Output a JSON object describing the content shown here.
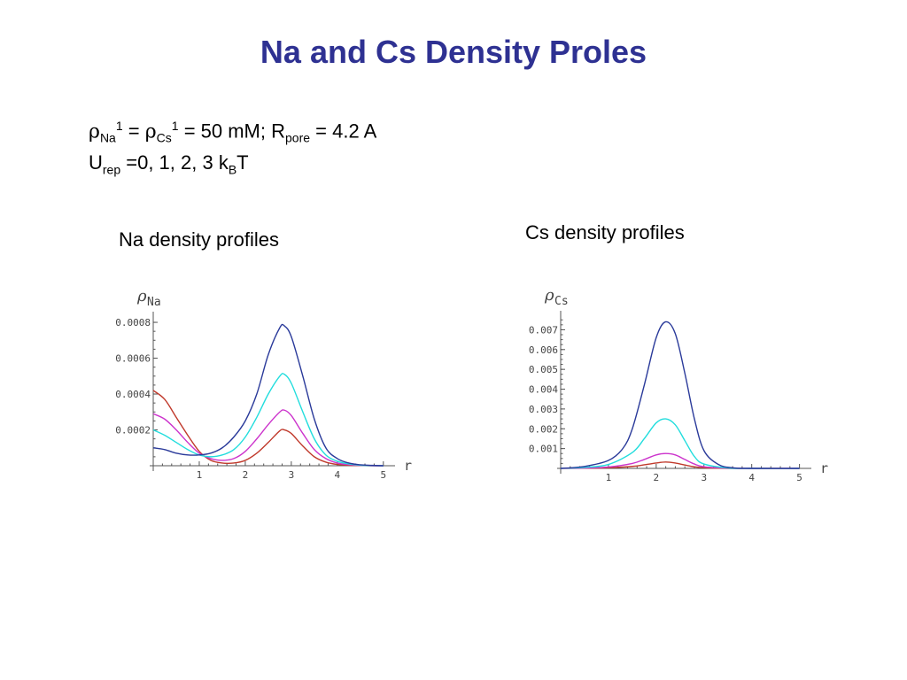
{
  "slide": {
    "title": "Na and Cs Density Proles"
  },
  "params": {
    "line1": {
      "rho": "ρ",
      "na_sub": "Na",
      "na_sup": "1",
      "eq1": " = ",
      "cs_sub": "Cs",
      "cs_sup": "1",
      "eq2": " = 50 mM; R",
      "pore_sub": "pore",
      "eq3": " = 4.2 A"
    },
    "line2": {
      "u": "U",
      "rep_sub": "rep",
      "values": " =0, 1, 2, 3 k",
      "b_sub": "B",
      "t": "T"
    }
  },
  "captions": {
    "na": "Na density profiles",
    "cs": "Cs density profiles"
  },
  "colors": {
    "red": "#c0392b",
    "magenta": "#cc33cc",
    "cyan": "#22dddd",
    "blue": "#2a3a9a"
  },
  "chart_data": [
    {
      "type": "line",
      "ylabel_symbol": "ρ",
      "ylabel_sub": "Na",
      "xlabel": "r",
      "xlim": [
        0,
        5.1
      ],
      "ylim": [
        0,
        0.00082
      ],
      "xticks": [
        1,
        2,
        3,
        4,
        5
      ],
      "xtick_labels": [
        "1",
        "2",
        "3",
        "4",
        "5"
      ],
      "yticks": [
        0.0002,
        0.0004,
        0.0006,
        0.0008
      ],
      "ytick_labels": [
        "0.0002",
        "0.0004",
        "0.0006",
        "0.0008"
      ],
      "series": [
        {
          "color_key": "red",
          "x": [
            0,
            0.25,
            0.5,
            0.75,
            1.0,
            1.25,
            1.5,
            1.75,
            2.0,
            2.25,
            2.5,
            2.75,
            2.85,
            3.0,
            3.25,
            3.5,
            3.75,
            4.0,
            4.25,
            4.5,
            4.75,
            5.0
          ],
          "y": [
            0.00042,
            0.00037,
            0.00027,
            0.00017,
            8e-05,
            3e-05,
            1.5e-05,
            1.5e-05,
            3e-05,
            7e-05,
            0.00013,
            0.000195,
            0.0002,
            0.00018,
            0.00011,
            5e-05,
            2e-05,
            7e-06,
            3e-06,
            1e-06,
            0,
            0
          ]
        },
        {
          "color_key": "magenta",
          "x": [
            0,
            0.25,
            0.5,
            0.75,
            1.0,
            1.25,
            1.5,
            1.75,
            2.0,
            2.25,
            2.5,
            2.75,
            2.85,
            3.0,
            3.25,
            3.5,
            3.75,
            4.0,
            4.25,
            4.5,
            4.75,
            5.0
          ],
          "y": [
            0.00029,
            0.00026,
            0.0002,
            0.00013,
            7e-05,
            4e-05,
            3e-05,
            4e-05,
            8e-05,
            0.00015,
            0.00023,
            0.0003,
            0.00031,
            0.00028,
            0.00018,
            9e-05,
            4e-05,
            1.5e-05,
            6e-06,
            2e-06,
            0,
            0
          ]
        },
        {
          "color_key": "cyan",
          "x": [
            0,
            0.25,
            0.5,
            0.75,
            1.0,
            1.25,
            1.5,
            1.75,
            2.0,
            2.25,
            2.5,
            2.75,
            2.85,
            3.0,
            3.25,
            3.5,
            3.75,
            4.0,
            4.25,
            4.5,
            4.75,
            5.0
          ],
          "y": [
            0.0002,
            0.00017,
            0.00013,
            9e-05,
            6e-05,
            5e-05,
            6e-05,
            9e-05,
            0.00016,
            0.00027,
            0.0004,
            0.0005,
            0.00051,
            0.00046,
            0.0003,
            0.00015,
            6e-05,
            2.5e-05,
            1e-05,
            3e-06,
            1e-06,
            0
          ]
        },
        {
          "color_key": "blue",
          "x": [
            0,
            0.25,
            0.5,
            0.75,
            1.0,
            1.25,
            1.5,
            1.75,
            2.0,
            2.25,
            2.5,
            2.75,
            2.85,
            3.0,
            3.25,
            3.5,
            3.75,
            4.0,
            4.25,
            4.5,
            4.75,
            5.0
          ],
          "y": [
            0.0001,
            9e-05,
            7e-05,
            6e-05,
            6e-05,
            7e-05,
            0.0001,
            0.00016,
            0.00025,
            0.0004,
            0.00062,
            0.00077,
            0.00078,
            0.00072,
            0.0005,
            0.00026,
            0.0001,
            4e-05,
            1.5e-05,
            5e-06,
            2e-06,
            0
          ]
        }
      ]
    },
    {
      "type": "line",
      "ylabel_symbol": "ρ",
      "ylabel_sub": "Cs",
      "xlabel": "r",
      "xlim": [
        0,
        5.1
      ],
      "ylim": [
        0,
        0.0076
      ],
      "xticks": [
        1,
        2,
        3,
        4,
        5
      ],
      "xtick_labels": [
        "1",
        "2",
        "3",
        "4",
        "5"
      ],
      "yticks": [
        0.001,
        0.002,
        0.003,
        0.004,
        0.005,
        0.006,
        0.007
      ],
      "ytick_labels": [
        "0.001",
        "0.002",
        "0.003",
        "0.004",
        "0.005",
        "0.006",
        "0.007"
      ],
      "series": [
        {
          "color_key": "red",
          "x": [
            0,
            0.5,
            1.0,
            1.5,
            1.75,
            2.0,
            2.2,
            2.4,
            2.6,
            2.8,
            3.0,
            3.5,
            4.0,
            5.0
          ],
          "y": [
            0,
            1e-05,
            3e-05,
            0.0001,
            0.00018,
            0.00027,
            0.00032,
            0.00027,
            0.00017,
            8e-05,
            3e-05,
            0,
            0,
            0
          ]
        },
        {
          "color_key": "magenta",
          "x": [
            0,
            0.5,
            1.0,
            1.5,
            1.75,
            2.0,
            2.2,
            2.4,
            2.6,
            2.8,
            3.0,
            3.5,
            4.0,
            5.0
          ],
          "y": [
            0,
            2e-05,
            7e-05,
            0.00025,
            0.00045,
            0.00068,
            0.00075,
            0.00068,
            0.00045,
            0.00022,
            8e-05,
            1e-05,
            0,
            0
          ]
        },
        {
          "color_key": "cyan",
          "x": [
            0,
            0.5,
            1.0,
            1.5,
            1.75,
            2.0,
            2.2,
            2.4,
            2.6,
            2.8,
            3.0,
            3.5,
            4.0,
            5.0
          ],
          "y": [
            0,
            5e-05,
            0.0002,
            0.0008,
            0.0015,
            0.0023,
            0.0025,
            0.0022,
            0.0014,
            0.0006,
            0.00022,
            2e-05,
            0,
            0
          ]
        },
        {
          "color_key": "blue",
          "x": [
            0,
            0.5,
            1.0,
            1.3,
            1.5,
            1.75,
            2.0,
            2.2,
            2.4,
            2.6,
            2.8,
            3.0,
            3.3,
            3.6,
            4.0,
            5.0
          ],
          "y": [
            0,
            0.0001,
            0.0004,
            0.001,
            0.002,
            0.0042,
            0.0066,
            0.0074,
            0.0068,
            0.0048,
            0.0025,
            0.0009,
            0.0002,
            3e-05,
            0,
            0
          ]
        }
      ]
    }
  ]
}
